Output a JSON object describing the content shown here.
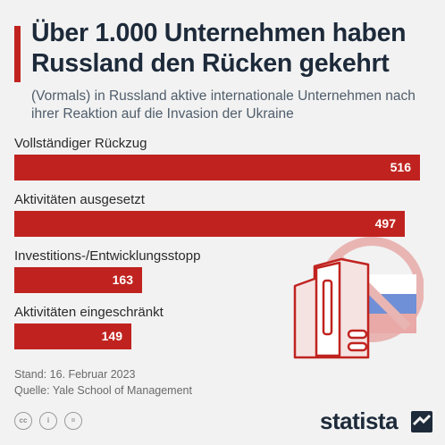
{
  "header": {
    "title": "Über 1.000 Unternehmen haben Russland den Rücken gekehrt",
    "subtitle": "(Vormals) in Russland aktive internationale Unternehmen nach ihrer Reaktion auf die Invasion der Ukraine"
  },
  "chart_data": {
    "type": "bar",
    "orientation": "horizontal",
    "categories": [
      "Vollständiger Rückzug",
      "Aktivitäten ausgesetzt",
      "Investitions-/Entwicklungsstopp",
      "Aktivitäten eingeschränkt"
    ],
    "values": [
      516,
      497,
      163,
      149
    ],
    "value_labels": [
      "516",
      "497",
      "163",
      "149"
    ],
    "bar_color": "#c0231f"
  },
  "footer": {
    "stand": "Stand: 16. Februar 2023",
    "source": "Quelle: Yale School of Management",
    "license_icons": [
      "cc-icon",
      "person-icon",
      "equals-icon"
    ],
    "license_labels": [
      "cc",
      "i",
      "="
    ],
    "brand": "statista"
  },
  "colors": {
    "accent": "#c0231f",
    "title": "#1d2a3a",
    "background": "#f2f2f2"
  }
}
